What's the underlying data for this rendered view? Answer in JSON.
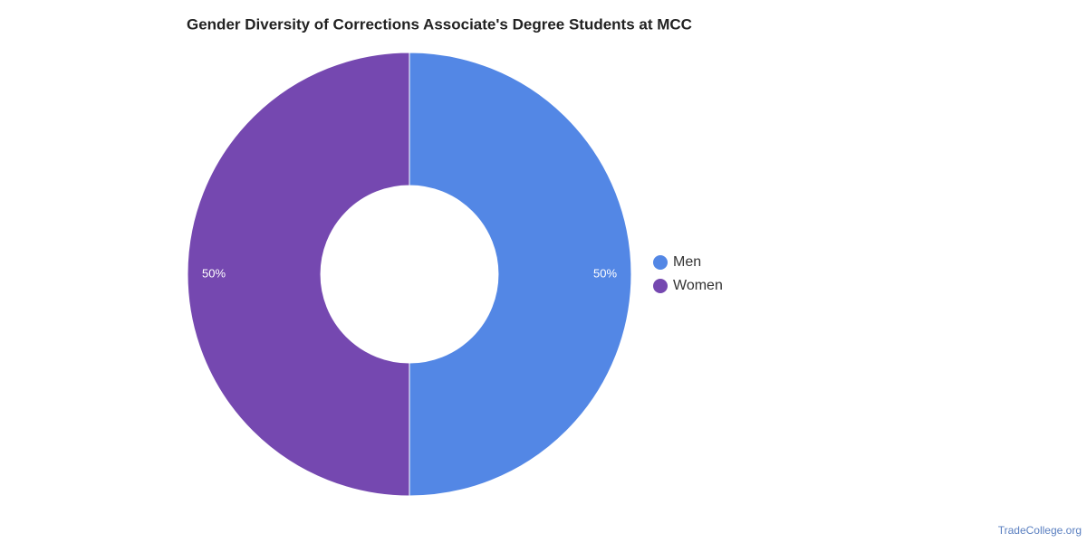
{
  "chart_data": {
    "type": "donut",
    "title": "Gender Diversity of Corrections Associate's Degree Students at MCC",
    "categories": [
      "Men",
      "Women"
    ],
    "values": [
      50,
      50
    ],
    "value_labels": [
      "50%",
      "50%"
    ],
    "colors": [
      "#5387e5",
      "#7548b0"
    ],
    "legend": "right"
  },
  "watermark": "TradeCollege.org"
}
